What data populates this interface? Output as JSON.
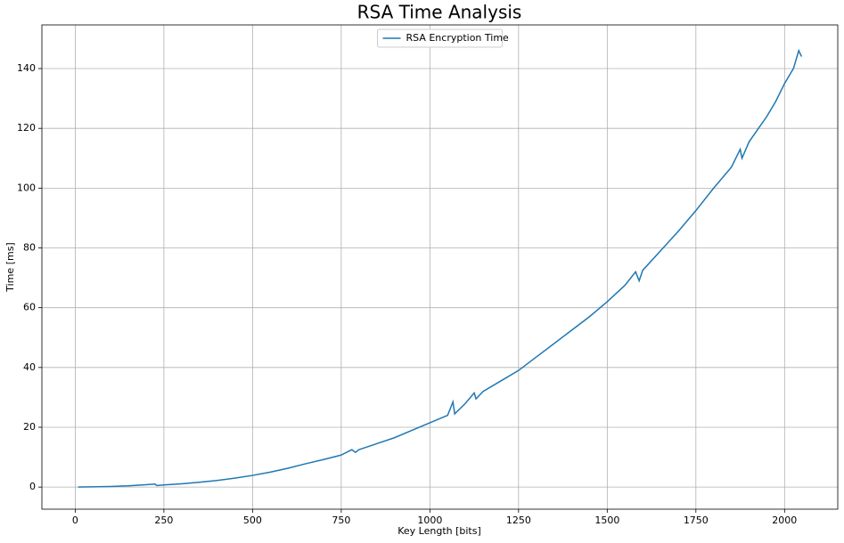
{
  "chart_data": {
    "type": "line",
    "title": "RSA Time Analysis",
    "xlabel": "Key Length [bits]",
    "ylabel": "Time [ms]",
    "x": [
      8,
      50,
      100,
      150,
      200,
      225,
      230,
      250,
      300,
      350,
      400,
      450,
      500,
      550,
      600,
      650,
      700,
      750,
      780,
      790,
      800,
      850,
      900,
      950,
      1000,
      1050,
      1065,
      1070,
      1100,
      1125,
      1130,
      1150,
      1200,
      1250,
      1300,
      1350,
      1400,
      1450,
      1500,
      1550,
      1580,
      1590,
      1600,
      1650,
      1700,
      1750,
      1800,
      1850,
      1875,
      1880,
      1900,
      1950,
      1975,
      2000,
      2025,
      2040,
      2048
    ],
    "series": [
      {
        "name": "RSA Encryption Time",
        "color": "#1f77b4",
        "values": [
          0,
          0.1,
          0.2,
          0.4,
          0.8,
          1.0,
          0.5,
          0.7,
          1.1,
          1.6,
          2.2,
          3.0,
          3.9,
          5.0,
          6.3,
          7.8,
          9.2,
          10.7,
          12.5,
          11.6,
          12.5,
          14.5,
          16.5,
          19.0,
          21.5,
          24.0,
          28.5,
          24.5,
          28.0,
          31.5,
          29.5,
          32,
          35.5,
          39.0,
          43.5,
          48.0,
          52.5,
          57.0,
          62.0,
          67.5,
          72,
          69,
          72.5,
          79.0,
          85.5,
          92.5,
          100.0,
          107.0,
          113,
          110,
          115.5,
          124.0,
          129,
          135.0,
          140,
          146,
          144
        ]
      }
    ],
    "xlim": [
      -94,
      2150
    ],
    "ylim": [
      -7.4,
      154.6
    ],
    "xticks": [
      0,
      250,
      500,
      750,
      1000,
      1250,
      1500,
      1750,
      2000
    ],
    "yticks": [
      0,
      20,
      40,
      60,
      80,
      100,
      120,
      140
    ],
    "grid": true,
    "legend": "upper center"
  }
}
